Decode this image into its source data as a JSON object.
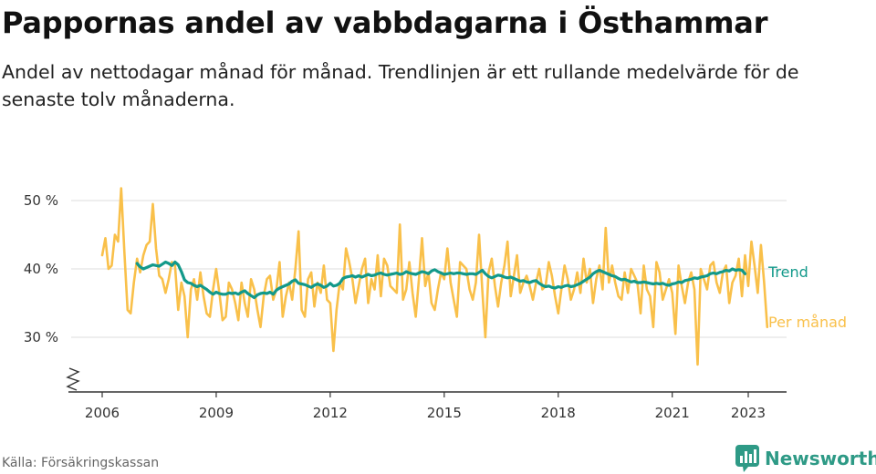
{
  "header": {
    "title": "Pappornas andel av vabbdagarna i Östhammar",
    "subtitle": "Andel av nettodagar månad för månad. Trendlinjen är ett rullande medelvärde för de senaste tolv månaderna."
  },
  "footer": {
    "source": "Källa: Försäkringskassan",
    "brand": "Newsworthy"
  },
  "colors": {
    "monthly": "#f9c04a",
    "trend": "#12998a",
    "grid": "#dddddd",
    "axis": "#333333",
    "brand": "#2e9a86"
  },
  "chart_data": {
    "type": "line",
    "title": "Pappornas andel av vabbdagarna i Östhammar",
    "ylabel": "",
    "xlabel": "",
    "ylim": [
      22,
      52
    ],
    "xlim": [
      2005.8,
      2023.8
    ],
    "y_ticks": [
      {
        "value": 30,
        "label": "30 %"
      },
      {
        "value": 40,
        "label": "40 %"
      },
      {
        "value": 50,
        "label": "50 %"
      }
    ],
    "x_ticks": [
      {
        "value": 2006,
        "label": "2006"
      },
      {
        "value": 2009,
        "label": "2009"
      },
      {
        "value": 2012,
        "label": "2012"
      },
      {
        "value": 2015,
        "label": "2015"
      },
      {
        "value": 2018,
        "label": "2018"
      },
      {
        "value": 2021,
        "label": "2021"
      },
      {
        "value": 2023,
        "label": "2023"
      }
    ],
    "axis_break": true,
    "series": [
      {
        "name": "Per månad",
        "label": "Per månad",
        "color": "#f9c04a",
        "start_year": 2006,
        "start_month": 1,
        "values": [
          42.0,
          44.5,
          40.0,
          40.5,
          45.0,
          44.0,
          51.8,
          42.5,
          34.0,
          33.5,
          38.0,
          41.5,
          39.5,
          42.0,
          43.5,
          44.0,
          49.5,
          43.0,
          39.0,
          38.5,
          36.5,
          38.5,
          41.0,
          40.5,
          34.0,
          38.0,
          36.0,
          30.0,
          37.0,
          38.5,
          35.5,
          39.5,
          36.0,
          33.5,
          33.0,
          37.0,
          40.0,
          36.5,
          32.5,
          33.0,
          38.0,
          37.0,
          35.0,
          32.5,
          38.0,
          35.0,
          33.0,
          38.5,
          37.0,
          34.0,
          31.5,
          36.0,
          38.5,
          39.0,
          35.5,
          37.0,
          41.0,
          33.0,
          36.0,
          38.0,
          35.5,
          40.0,
          45.5,
          34.0,
          33.0,
          38.5,
          39.5,
          34.5,
          38.0,
          36.5,
          40.5,
          35.5,
          35.0,
          28.0,
          34.0,
          38.0,
          37.0,
          43.0,
          41.0,
          38.5,
          35.0,
          37.5,
          40.0,
          41.5,
          35.0,
          38.5,
          37.0,
          42.0,
          36.0,
          41.5,
          40.5,
          37.5,
          37.0,
          36.5,
          46.5,
          35.5,
          37.0,
          41.0,
          36.5,
          33.0,
          38.5,
          44.5,
          37.5,
          39.5,
          35.0,
          34.0,
          37.0,
          39.5,
          38.5,
          43.0,
          38.0,
          35.5,
          33.0,
          41.0,
          40.5,
          40.0,
          37.0,
          35.5,
          38.0,
          45.0,
          37.0,
          30.0,
          39.5,
          41.5,
          37.5,
          34.5,
          38.0,
          40.5,
          44.0,
          36.0,
          39.0,
          42.0,
          36.5,
          38.0,
          39.0,
          37.5,
          35.5,
          38.0,
          40.0,
          37.0,
          37.5,
          41.0,
          39.0,
          36.0,
          33.5,
          37.0,
          40.5,
          38.5,
          35.5,
          37.0,
          39.5,
          36.5,
          41.5,
          38.0,
          40.0,
          35.0,
          38.5,
          40.5,
          37.0,
          46.0,
          38.0,
          40.5,
          38.0,
          36.0,
          35.5,
          39.5,
          36.5,
          40.0,
          39.0,
          38.0,
          33.5,
          40.5,
          37.0,
          36.0,
          31.5,
          41.0,
          39.5,
          35.5,
          37.0,
          38.5,
          36.5,
          30.5,
          40.5,
          37.5,
          35.0,
          38.0,
          39.5,
          37.0,
          26.0,
          40.0,
          38.5,
          37.0,
          40.5,
          41.0,
          38.0,
          36.5,
          39.5,
          40.5,
          35.0,
          38.0,
          39.0,
          41.5,
          36.0,
          42.0,
          37.5,
          44.0,
          40.5,
          36.5,
          43.5,
          38.0,
          31.5
        ]
      },
      {
        "name": "Trend",
        "label": "Trend",
        "color": "#12998a",
        "start_year": 2006,
        "start_month": 12,
        "values": [
          40.8,
          40.3,
          40.0,
          40.2,
          40.4,
          40.6,
          40.5,
          40.4,
          40.7,
          41.0,
          40.8,
          40.5,
          41.0,
          40.6,
          39.6,
          38.4,
          38.0,
          37.9,
          37.6,
          37.4,
          37.6,
          37.3,
          37.0,
          36.6,
          36.3,
          36.6,
          36.4,
          36.3,
          36.3,
          36.5,
          36.4,
          36.5,
          36.3,
          36.6,
          36.8,
          36.4,
          36.1,
          35.8,
          36.2,
          36.4,
          36.5,
          36.4,
          36.6,
          36.3,
          36.9,
          37.2,
          37.4,
          37.6,
          37.8,
          38.2,
          38.4,
          37.9,
          37.8,
          37.7,
          37.5,
          37.3,
          37.6,
          37.8,
          37.6,
          37.3,
          37.5,
          37.9,
          37.5,
          37.6,
          37.9,
          38.6,
          38.8,
          38.9,
          39.0,
          38.8,
          39.0,
          38.8,
          39.0,
          39.2,
          39.0,
          39.1,
          39.3,
          39.4,
          39.2,
          39.1,
          39.2,
          39.3,
          39.4,
          39.2,
          39.3,
          39.6,
          39.4,
          39.3,
          39.2,
          39.4,
          39.6,
          39.5,
          39.3,
          39.7,
          39.9,
          39.6,
          39.4,
          39.2,
          39.3,
          39.4,
          39.3,
          39.4,
          39.4,
          39.3,
          39.2,
          39.3,
          39.3,
          39.2,
          39.5,
          39.8,
          39.3,
          38.9,
          38.7,
          38.9,
          39.1,
          39.0,
          38.8,
          38.7,
          38.8,
          38.6,
          38.4,
          38.2,
          38.3,
          38.1,
          38.0,
          38.2,
          38.3,
          37.9,
          37.6,
          37.4,
          37.5,
          37.3,
          37.2,
          37.4,
          37.3,
          37.5,
          37.6,
          37.4,
          37.5,
          37.7,
          37.9,
          38.2,
          38.5,
          38.8,
          39.3,
          39.6,
          39.8,
          39.6,
          39.4,
          39.2,
          39.0,
          38.9,
          38.6,
          38.4,
          38.5,
          38.3,
          38.1,
          38.2,
          38.0,
          38.0,
          38.1,
          38.0,
          37.9,
          37.8,
          37.9,
          37.8,
          37.9,
          37.7,
          37.6,
          37.8,
          37.9,
          38.1,
          38.0,
          38.3,
          38.4,
          38.5,
          38.7,
          38.6,
          38.8,
          38.9,
          39.0,
          39.3,
          39.4,
          39.3,
          39.5,
          39.6,
          39.8,
          39.7,
          40.0,
          39.8,
          39.9,
          39.8,
          39.3
        ]
      }
    ]
  }
}
